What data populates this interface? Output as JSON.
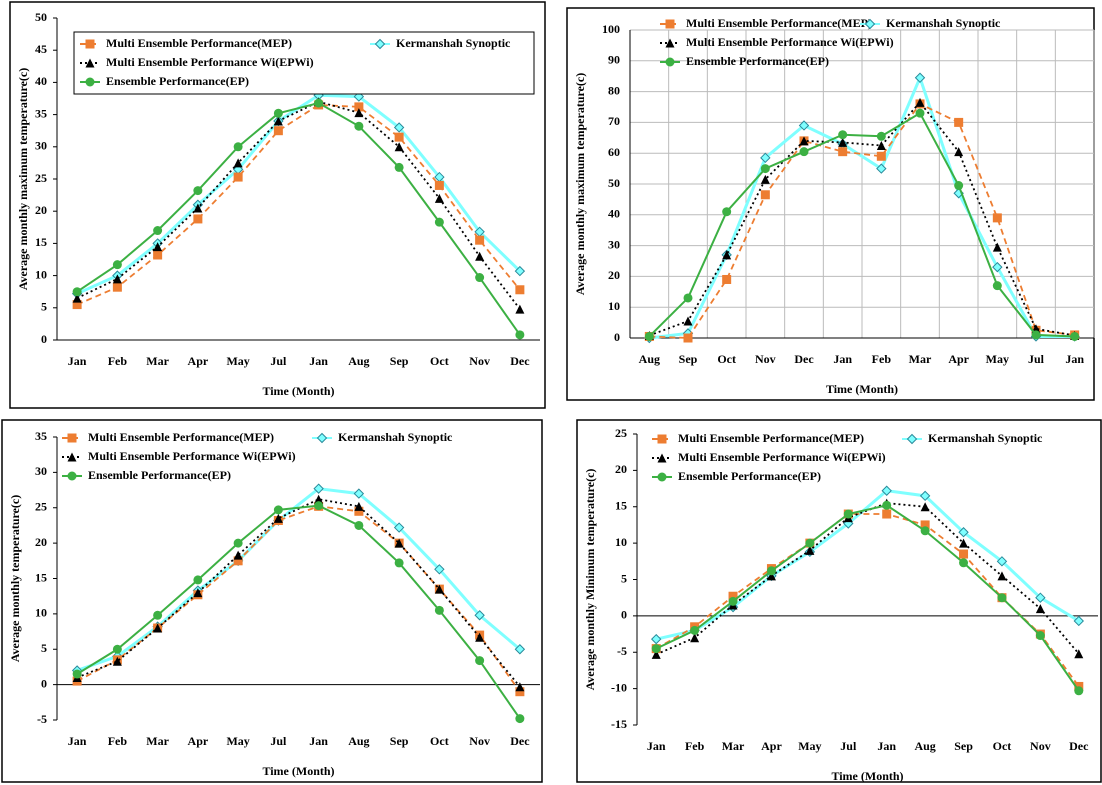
{
  "chart_data": [
    {
      "type": "line",
      "y_label": "Average monthly maximum temperature(c)",
      "x_label": "Time (Month)",
      "categories": [
        "Jan",
        "Feb",
        "Mar",
        "Apr",
        "May",
        "Jul",
        "Jan",
        "Aug",
        "Sep",
        "Oct",
        "Nov",
        "Dec"
      ],
      "ylim": [
        0,
        50
      ],
      "yticks": [
        0,
        5,
        10,
        15,
        20,
        25,
        30,
        35,
        40,
        45,
        50
      ],
      "grid": false,
      "legend_border": true,
      "series": [
        {
          "name": "Multi Ensemble Performance(MEP)",
          "color": "#ed7d31",
          "line_style": "dashed",
          "marker": "square",
          "values": [
            5.5,
            8.2,
            13.2,
            18.8,
            25.3,
            32.5,
            36.5,
            36.2,
            31.5,
            24,
            15.5,
            7.8
          ]
        },
        {
          "name": "Multi Ensemble Performance Wi(EPWi)",
          "color": "#000000",
          "line_style": "dotted",
          "marker": "triangle",
          "values": [
            6.5,
            9.5,
            14.5,
            20.5,
            27.5,
            34,
            37,
            35.3,
            30,
            22,
            13,
            4.8
          ]
        },
        {
          "name": "Ensemble Performance(EP)",
          "color": "#3cb043",
          "line_style": "solid",
          "marker": "circle",
          "values": [
            7.5,
            11.7,
            17,
            23.2,
            30,
            35.2,
            36.8,
            33.2,
            26.8,
            18.3,
            9.7,
            0.8
          ]
        },
        {
          "name": "Kermanshah Synoptic",
          "color": "#7fffff",
          "line_style": "solid",
          "marker": "diamond",
          "values": [
            7.2,
            10,
            15,
            21,
            26.5,
            34,
            38,
            37.8,
            33,
            25.3,
            16.8,
            10.7
          ]
        }
      ]
    },
    {
      "type": "line",
      "y_label": "Average monthly maximum temperature(c)",
      "x_label": "Time (Month)",
      "categories": [
        "Aug",
        "Sep",
        "Oct",
        "Nov",
        "Dec",
        "Jan",
        "Feb",
        "Mar",
        "Apr",
        "May",
        "Jul",
        "Jan"
      ],
      "ylim": [
        0,
        100
      ],
      "yticks": [
        0,
        10,
        20,
        30,
        40,
        50,
        60,
        70,
        80,
        90,
        100
      ],
      "grid": true,
      "legend_border": false,
      "series": [
        {
          "name": "Multi Ensemble Performance(MEP)",
          "color": "#ed7d31",
          "line_style": "dashed",
          "marker": "square",
          "values": [
            0.5,
            0,
            19,
            46.5,
            64,
            60.5,
            59,
            76,
            70,
            39,
            2.5,
            1
          ]
        },
        {
          "name": "Multi Ensemble Performance Wi(EPWi)",
          "color": "#000000",
          "line_style": "dotted",
          "marker": "triangle",
          "values": [
            0.8,
            5.5,
            27,
            51.5,
            64,
            63.5,
            62.5,
            76.5,
            60.5,
            29.5,
            3,
            0.8
          ]
        },
        {
          "name": "Ensemble Performance(EP)",
          "color": "#3cb043",
          "line_style": "solid",
          "marker": "circle",
          "values": [
            0.5,
            13,
            41,
            55,
            60.5,
            66,
            65.5,
            73,
            49.5,
            17,
            1,
            0.5
          ]
        },
        {
          "name": "Kermanshah Synoptic",
          "color": "#7fffff",
          "line_style": "solid",
          "marker": "diamond",
          "values": [
            0,
            1.5,
            27,
            58.5,
            69,
            63,
            55,
            84.5,
            47,
            23,
            0.5,
            0.5
          ]
        }
      ]
    },
    {
      "type": "line",
      "y_label": "Average monthly temperature(c)",
      "x_label": "Time (Month)",
      "categories": [
        "Jan",
        "Feb",
        "Mar",
        "Apr",
        "May",
        "Jul",
        "Jan",
        "Aug",
        "Sep",
        "Oct",
        "Nov",
        "Dec"
      ],
      "ylim": [
        -5,
        35
      ],
      "yticks": [
        -5,
        0,
        5,
        10,
        15,
        20,
        25,
        30,
        35
      ],
      "grid": false,
      "legend_border": false,
      "series": [
        {
          "name": "Multi Ensemble Performance(MEP)",
          "color": "#ed7d31",
          "line_style": "dashed",
          "marker": "square",
          "values": [
            0.5,
            3.5,
            8,
            12.7,
            17.5,
            23.2,
            25.2,
            24.5,
            20,
            13.5,
            7,
            -1
          ]
        },
        {
          "name": "Multi Ensemble Performance Wi(EPWi)",
          "color": "#000000",
          "line_style": "dotted",
          "marker": "triangle",
          "values": [
            1,
            3.3,
            8,
            13,
            18.3,
            23.5,
            26.2,
            25.2,
            20,
            13.5,
            6.7,
            -0.3
          ]
        },
        {
          "name": "Ensemble Performance(EP)",
          "color": "#3cb043",
          "line_style": "solid",
          "marker": "circle",
          "values": [
            1.5,
            5,
            9.8,
            14.8,
            20,
            24.7,
            25.3,
            22.5,
            17.2,
            10.5,
            3.4,
            -4.8
          ]
        },
        {
          "name": "Kermanshah Synoptic",
          "color": "#7fffff",
          "line_style": "solid",
          "marker": "diamond",
          "values": [
            2,
            4,
            8.2,
            13.3,
            17.5,
            23.2,
            27.7,
            27,
            22.2,
            16.3,
            9.8,
            5
          ]
        }
      ]
    },
    {
      "type": "line",
      "y_label": "Average monthly  Minimum temperature(c)",
      "x_label": "Time (Month)",
      "categories": [
        "Jan",
        "Feb",
        "Mar",
        "Apr",
        "May",
        "Jul",
        "Jan",
        "Aug",
        "Sep",
        "Oct",
        "Nov",
        "Dec"
      ],
      "ylim": [
        -15,
        25
      ],
      "yticks": [
        -15,
        -10,
        -5,
        0,
        5,
        10,
        15,
        20,
        25
      ],
      "grid": false,
      "legend_border": false,
      "series": [
        {
          "name": "Multi Ensemble Performance(MEP)",
          "color": "#ed7d31",
          "line_style": "dashed",
          "marker": "square",
          "values": [
            -4.5,
            -1.5,
            2.7,
            6.5,
            10,
            14,
            14,
            12.5,
            8.5,
            2.5,
            -2.5,
            -9.7
          ]
        },
        {
          "name": "Multi Ensemble Performance Wi(EPWi)",
          "color": "#000000",
          "line_style": "dotted",
          "marker": "triangle",
          "values": [
            -5.3,
            -3,
            1.5,
            5.5,
            9,
            13.5,
            15.5,
            15,
            10,
            5.5,
            1,
            -5.2
          ]
        },
        {
          "name": "Ensemble Performance(EP)",
          "color": "#3cb043",
          "line_style": "solid",
          "marker": "circle",
          "values": [
            -4.5,
            -2,
            2,
            6.2,
            10,
            14,
            15.2,
            11.7,
            7.3,
            2.5,
            -2.7,
            -10.3
          ]
        },
        {
          "name": "Kermanshah Synoptic",
          "color": "#7fffff",
          "line_style": "solid",
          "marker": "diamond",
          "values": [
            -3.2,
            -2,
            1.2,
            5.5,
            8.8,
            12.7,
            17.2,
            16.5,
            11.5,
            7.5,
            2.5,
            -0.7
          ]
        }
      ]
    }
  ]
}
